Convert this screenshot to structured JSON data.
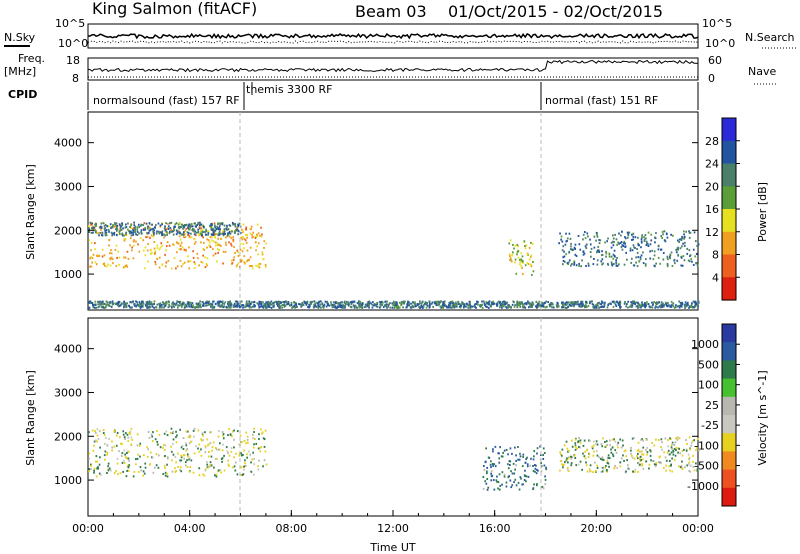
{
  "header": {
    "station": "King Salmon (fitACF)",
    "beam": "Beam 03",
    "dates": "01/Oct/2015 - 02/Oct/2015"
  },
  "top_panels": {
    "nsky_label": "N.Sky",
    "nsearch_label": "N.Search",
    "freq_label_1": "Freq.",
    "freq_label_2": "[MHz]",
    "nave_label": "Nave",
    "cpid_label": "CPID",
    "noise_left_ticks": [
      "10^5",
      "10^0"
    ],
    "noise_right_ticks": [
      "10^5",
      "10^0"
    ],
    "freq_ticks": [
      "18",
      "8"
    ],
    "nave_ticks": [
      "60",
      "0"
    ],
    "cpid_entries": [
      {
        "text": "normalsound (fast) 157 RF"
      },
      {
        "text": "themis 3300 RF"
      },
      {
        "text": "normal (fast) 151 RF"
      }
    ]
  },
  "time_axis": {
    "label": "Time UT",
    "ticks": [
      "00:00",
      "04:00",
      "08:00",
      "12:00",
      "16:00",
      "20:00",
      "00:00"
    ]
  },
  "colors": {
    "power_scale": [
      "#2a2ad8",
      "#2255a0",
      "#4a7f6a",
      "#5a9e3a",
      "#e6e020",
      "#f0a020",
      "#ee6020",
      "#dd2010"
    ],
    "velocity_scale": [
      "#2a3aa0",
      "#2a5aa0",
      "#2e7a4a",
      "#46c02e",
      "#b8b8b0",
      "#c8c8c0",
      "#e6d020",
      "#f08a20",
      "#ee5020",
      "#dd1a10"
    ]
  },
  "chart_data": [
    {
      "type": "heatmap",
      "name": "power",
      "ylabel": "Slant Range [km]",
      "xlabel": "",
      "xlim_hours": [
        0,
        24
      ],
      "ylim": [
        180,
        4700
      ],
      "yticks": [
        1000,
        2000,
        3000,
        4000
      ],
      "colorbar": {
        "label": "Power [dB]",
        "ticks": [
          "28",
          "24",
          "20",
          "16",
          "12",
          "8",
          "4"
        ],
        "range": [
          0,
          30
        ]
      },
      "features": [
        {
          "t_start": 0.0,
          "t_end": 7.0,
          "range_start": 1150,
          "range_end": 2200,
          "value": 20,
          "desc_time_start": "00:00",
          "desc_time_end": "07:00"
        },
        {
          "t_start": 0.0,
          "t_end": 6.0,
          "range_start": 1900,
          "range_end": 2200,
          "value": 8
        },
        {
          "t_start": 16.5,
          "t_end": 17.5,
          "range_start": 1000,
          "range_end": 1800,
          "value": 16
        },
        {
          "t_start": 18.5,
          "t_end": 24.0,
          "range_start": 1200,
          "range_end": 2000,
          "value": 8
        },
        {
          "t_start": 0.0,
          "t_end": 24.0,
          "range_start": 250,
          "range_end": 400,
          "value": 8
        }
      ]
    },
    {
      "type": "heatmap",
      "name": "velocity",
      "ylabel": "Slant Range [km]",
      "xlabel": "Time UT",
      "xlim_hours": [
        0,
        24
      ],
      "ylim": [
        180,
        4700
      ],
      "yticks": [
        1000,
        2000,
        3000,
        4000
      ],
      "colorbar": {
        "label": "Velocity [m s^-1]",
        "ticks": [
          "1000",
          "500",
          "100",
          "25",
          "-25",
          "-100",
          "-500",
          "-1000"
        ],
        "range": [
          -1000,
          1000
        ]
      },
      "features": [
        {
          "t_start": 0.0,
          "t_end": 7.0,
          "range_start": 1100,
          "range_end": 2200,
          "value": 0
        },
        {
          "t_start": 15.5,
          "t_end": 18.0,
          "range_start": 800,
          "range_end": 1800,
          "value": 100
        },
        {
          "t_start": 18.5,
          "t_end": 24.0,
          "range_start": 1200,
          "range_end": 2000,
          "value": 0
        }
      ]
    }
  ]
}
